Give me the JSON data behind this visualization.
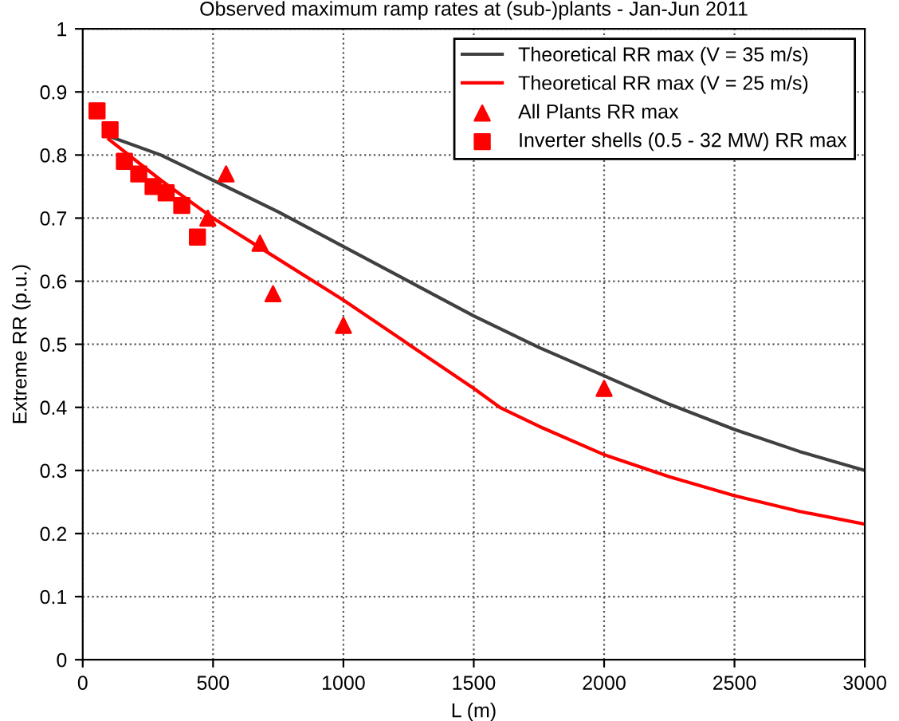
{
  "chart_data": {
    "type": "line",
    "title": "Observed maximum ramp rates at (sub-)plants - Jan-Jun 2011",
    "xlabel": "L (m)",
    "ylabel": "Extreme RR (p.u.)",
    "series": [
      {
        "name": "Theoretical RR max (V = 35 m/s)",
        "color": "#404040",
        "x": [
          100,
          300,
          500,
          750,
          1000,
          1250,
          1500,
          1750,
          2000,
          2250,
          2500,
          2750,
          3000
        ],
        "values": [
          0.83,
          0.8,
          0.76,
          0.71,
          0.655,
          0.6,
          0.545,
          0.495,
          0.45,
          0.405,
          0.365,
          0.33,
          0.3
        ]
      },
      {
        "name": "Theoretical RR max (V = 25 m/s)",
        "color": "#ff0000",
        "x": [
          100,
          300,
          500,
          750,
          1000,
          1250,
          1500,
          1600,
          1750,
          2000,
          2250,
          2500,
          2750,
          3000
        ],
        "values": [
          0.825,
          0.76,
          0.7,
          0.635,
          0.57,
          0.5,
          0.43,
          0.4,
          0.37,
          0.325,
          0.29,
          0.26,
          0.235,
          0.215
        ]
      },
      {
        "name": "All Plants RR max",
        "type": "scatter",
        "marker": "triangle",
        "color": "#ff0000",
        "x": [
          480,
          550,
          680,
          730,
          1000,
          2000
        ],
        "values": [
          0.7,
          0.77,
          0.66,
          0.58,
          0.53,
          0.43
        ]
      },
      {
        "name": "Inverter shells (0.5 - 32 MW) RR max",
        "type": "scatter",
        "marker": "square",
        "color": "#ff0000",
        "x": [
          55,
          105,
          160,
          215,
          270,
          320,
          380,
          440
        ],
        "values": [
          0.87,
          0.84,
          0.79,
          0.77,
          0.75,
          0.74,
          0.72,
          0.67
        ]
      }
    ],
    "xlim": [
      0,
      3000
    ],
    "xticks": [
      0,
      500,
      1000,
      1500,
      2000,
      2500,
      3000
    ],
    "ylim": [
      0,
      1
    ],
    "yticks": [
      0,
      0.1,
      0.2,
      0.3,
      0.4,
      0.5,
      0.6,
      0.7,
      0.8,
      0.9,
      1
    ],
    "grid": true,
    "legend": "top right"
  }
}
